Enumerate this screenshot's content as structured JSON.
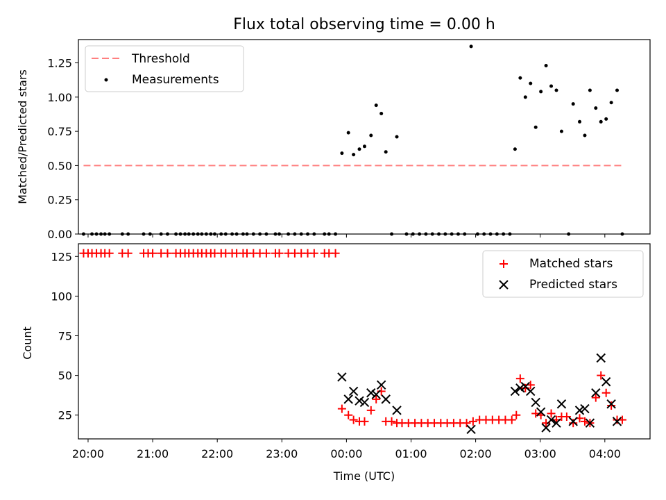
{
  "chart_data": [
    {
      "type": "scatter",
      "title": "Flux total observing time = 0.00 h",
      "xlabel": "",
      "ylabel": "Matched/Predicted stars",
      "xlim": [
        19.85,
        28.7
      ],
      "ylim": [
        0,
        1.42
      ],
      "yticks": [
        "0.00",
        "0.25",
        "0.50",
        "0.75",
        "1.00",
        "1.25"
      ],
      "ytick_values": [
        0,
        0.25,
        0.5,
        0.75,
        1.0,
        1.25
      ],
      "legend_position": "top-left",
      "threshold": {
        "name": "Threshold",
        "color": "#ff7f7f",
        "x": [
          19.93,
          28.27
        ],
        "y": 0.5
      },
      "series": [
        {
          "name": "Measurements",
          "color": "#000000",
          "points": [
            [
              19.93,
              0
            ],
            [
              20.06,
              0
            ],
            [
              20.13,
              0
            ],
            [
              20.2,
              0
            ],
            [
              20.26,
              0
            ],
            [
              20.33,
              0
            ],
            [
              20.53,
              0
            ],
            [
              20.62,
              0
            ],
            [
              20.86,
              0
            ],
            [
              20.96,
              0
            ],
            [
              21.13,
              0
            ],
            [
              21.23,
              0
            ],
            [
              21.36,
              0
            ],
            [
              21.43,
              0
            ],
            [
              21.5,
              0
            ],
            [
              21.56,
              0
            ],
            [
              21.63,
              0
            ],
            [
              21.7,
              0
            ],
            [
              21.76,
              0
            ],
            [
              21.83,
              0
            ],
            [
              21.9,
              0
            ],
            [
              21.96,
              0
            ],
            [
              22.06,
              0
            ],
            [
              22.13,
              0
            ],
            [
              22.23,
              0
            ],
            [
              22.3,
              0
            ],
            [
              22.4,
              0
            ],
            [
              22.46,
              0
            ],
            [
              22.56,
              0
            ],
            [
              22.66,
              0
            ],
            [
              22.76,
              0
            ],
            [
              22.9,
              0
            ],
            [
              22.96,
              0
            ],
            [
              23.1,
              0
            ],
            [
              23.2,
              0
            ],
            [
              23.3,
              0
            ],
            [
              23.4,
              0
            ],
            [
              23.5,
              0
            ],
            [
              23.66,
              0
            ],
            [
              23.73,
              0
            ],
            [
              23.83,
              0
            ],
            [
              23.93,
              0.59
            ],
            [
              24.03,
              0.74
            ],
            [
              24.11,
              0.58
            ],
            [
              24.2,
              0.62
            ],
            [
              24.28,
              0.64
            ],
            [
              24.38,
              0.72
            ],
            [
              24.46,
              0.94
            ],
            [
              24.54,
              0.88
            ],
            [
              24.61,
              0.6
            ],
            [
              24.7,
              0
            ],
            [
              24.78,
              0.71
            ],
            [
              24.93,
              0
            ],
            [
              25.03,
              0
            ],
            [
              25.13,
              0
            ],
            [
              25.23,
              0
            ],
            [
              25.33,
              0
            ],
            [
              25.43,
              0
            ],
            [
              25.53,
              0
            ],
            [
              25.63,
              0
            ],
            [
              25.73,
              0
            ],
            [
              25.83,
              0
            ],
            [
              25.93,
              1.37
            ],
            [
              26.03,
              0
            ],
            [
              26.13,
              0
            ],
            [
              26.23,
              0
            ],
            [
              26.33,
              0
            ],
            [
              26.43,
              0
            ],
            [
              26.53,
              0
            ],
            [
              26.61,
              0.62
            ],
            [
              26.69,
              1.14
            ],
            [
              26.77,
              1.0
            ],
            [
              26.85,
              1.1
            ],
            [
              26.93,
              0.78
            ],
            [
              27.01,
              1.04
            ],
            [
              27.09,
              1.23
            ],
            [
              27.17,
              1.08
            ],
            [
              27.25,
              1.05
            ],
            [
              27.33,
              0.75
            ],
            [
              27.44,
              0
            ],
            [
              27.51,
              0.95
            ],
            [
              27.61,
              0.82
            ],
            [
              27.69,
              0.72
            ],
            [
              27.77,
              1.05
            ],
            [
              27.86,
              0.92
            ],
            [
              27.94,
              0.82
            ],
            [
              28.02,
              0.84
            ],
            [
              28.1,
              0.96
            ],
            [
              28.19,
              1.05
            ],
            [
              28.27,
              0
            ]
          ]
        }
      ]
    },
    {
      "type": "scatter",
      "title": "",
      "xlabel": "Time (UTC)",
      "ylabel": "Count",
      "xlim": [
        19.85,
        28.7
      ],
      "ylim": [
        10,
        133
      ],
      "xticks": [
        "20:00",
        "21:00",
        "22:00",
        "23:00",
        "00:00",
        "01:00",
        "02:00",
        "03:00",
        "04:00"
      ],
      "xtick_values": [
        20,
        21,
        22,
        23,
        24,
        25,
        26,
        27,
        28
      ],
      "yticks": [
        "25",
        "50",
        "75",
        "100",
        "125"
      ],
      "ytick_values": [
        25,
        50,
        75,
        100,
        125
      ],
      "legend_position": "top-right",
      "series": [
        {
          "name": "Matched stars",
          "color": "#ff0000",
          "marker": "plus",
          "points": [
            [
              19.93,
              127
            ],
            [
              20.0,
              127
            ],
            [
              20.06,
              127
            ],
            [
              20.13,
              127
            ],
            [
              20.2,
              127
            ],
            [
              20.26,
              127
            ],
            [
              20.33,
              127
            ],
            [
              20.53,
              127
            ],
            [
              20.62,
              127
            ],
            [
              20.86,
              127
            ],
            [
              20.93,
              127
            ],
            [
              21.0,
              127
            ],
            [
              21.13,
              127
            ],
            [
              21.23,
              127
            ],
            [
              21.36,
              127
            ],
            [
              21.43,
              127
            ],
            [
              21.5,
              127
            ],
            [
              21.56,
              127
            ],
            [
              21.63,
              127
            ],
            [
              21.7,
              127
            ],
            [
              21.76,
              127
            ],
            [
              21.83,
              127
            ],
            [
              21.9,
              127
            ],
            [
              21.96,
              127
            ],
            [
              22.06,
              127
            ],
            [
              22.13,
              127
            ],
            [
              22.23,
              127
            ],
            [
              22.3,
              127
            ],
            [
              22.4,
              127
            ],
            [
              22.46,
              127
            ],
            [
              22.56,
              127
            ],
            [
              22.66,
              127
            ],
            [
              22.76,
              127
            ],
            [
              22.9,
              127
            ],
            [
              22.96,
              127
            ],
            [
              23.1,
              127
            ],
            [
              23.2,
              127
            ],
            [
              23.3,
              127
            ],
            [
              23.4,
              127
            ],
            [
              23.5,
              127
            ],
            [
              23.66,
              127
            ],
            [
              23.73,
              127
            ],
            [
              23.83,
              127
            ],
            [
              23.93,
              29
            ],
            [
              24.03,
              25
            ],
            [
              24.11,
              22
            ],
            [
              24.2,
              21
            ],
            [
              24.28,
              21
            ],
            [
              24.38,
              28
            ],
            [
              24.46,
              35
            ],
            [
              24.54,
              40
            ],
            [
              24.61,
              21
            ],
            [
              24.7,
              21
            ],
            [
              24.78,
              20
            ],
            [
              24.86,
              20
            ],
            [
              24.96,
              20
            ],
            [
              25.06,
              20
            ],
            [
              25.16,
              20
            ],
            [
              25.26,
              20
            ],
            [
              25.36,
              20
            ],
            [
              25.46,
              20
            ],
            [
              25.56,
              20
            ],
            [
              25.66,
              20
            ],
            [
              25.76,
              20
            ],
            [
              25.86,
              20
            ],
            [
              25.96,
              21
            ],
            [
              26.06,
              22
            ],
            [
              26.16,
              22
            ],
            [
              26.26,
              22
            ],
            [
              26.36,
              22
            ],
            [
              26.46,
              22
            ],
            [
              26.56,
              22
            ],
            [
              26.63,
              25
            ],
            [
              26.69,
              48
            ],
            [
              26.77,
              42
            ],
            [
              26.85,
              44
            ],
            [
              26.93,
              26
            ],
            [
              27.01,
              25
            ],
            [
              27.09,
              20
            ],
            [
              27.17,
              26
            ],
            [
              27.25,
              22
            ],
            [
              27.33,
              24
            ],
            [
              27.41,
              24
            ],
            [
              27.51,
              20
            ],
            [
              27.61,
              23
            ],
            [
              27.69,
              21
            ],
            [
              27.77,
              20
            ],
            [
              27.86,
              36
            ],
            [
              27.94,
              50
            ],
            [
              28.02,
              39
            ],
            [
              28.1,
              31
            ],
            [
              28.19,
              22
            ],
            [
              28.27,
              22
            ]
          ]
        },
        {
          "name": "Predicted stars",
          "color": "#000000",
          "marker": "x",
          "points": [
            [
              23.93,
              49
            ],
            [
              24.03,
              35
            ],
            [
              24.11,
              40
            ],
            [
              24.2,
              34
            ],
            [
              24.28,
              33
            ],
            [
              24.38,
              39
            ],
            [
              24.46,
              38
            ],
            [
              24.54,
              44
            ],
            [
              24.61,
              35
            ],
            [
              24.78,
              28
            ],
            [
              25.93,
              16
            ],
            [
              26.61,
              40
            ],
            [
              26.69,
              42
            ],
            [
              26.77,
              43
            ],
            [
              26.85,
              40
            ],
            [
              26.93,
              33
            ],
            [
              27.01,
              27
            ],
            [
              27.09,
              17
            ],
            [
              27.17,
              22
            ],
            [
              27.25,
              20
            ],
            [
              27.33,
              32
            ],
            [
              27.51,
              21
            ],
            [
              27.61,
              28
            ],
            [
              27.69,
              29
            ],
            [
              27.77,
              20
            ],
            [
              27.86,
              39
            ],
            [
              27.94,
              61
            ],
            [
              28.02,
              46
            ],
            [
              28.1,
              32
            ],
            [
              28.19,
              21
            ]
          ]
        }
      ]
    }
  ]
}
